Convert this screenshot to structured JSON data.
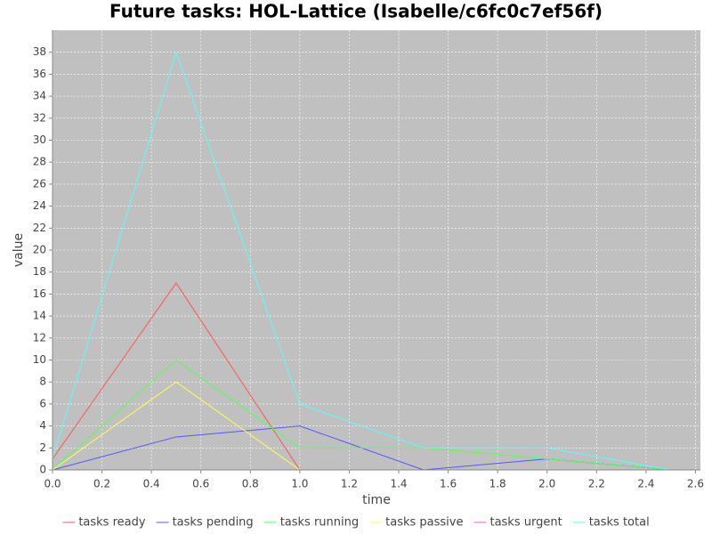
{
  "chart_data": {
    "type": "line",
    "title": "Future tasks: HOL-Lattice (Isabelle/c6fc0c7ef56f)",
    "x_label": "time",
    "y_label": "value",
    "x": [
      0,
      0.5,
      1,
      1.5,
      2,
      2.5
    ],
    "series": [
      {
        "name": "tasks ready",
        "color": "#ff5555",
        "values": [
          1,
          17,
          0,
          0,
          0,
          0
        ]
      },
      {
        "name": "tasks pending",
        "color": "#5555ff",
        "values": [
          0,
          3,
          4,
          0,
          1,
          0
        ]
      },
      {
        "name": "tasks running",
        "color": "#55ff55",
        "values": [
          0,
          10,
          2,
          2,
          1,
          0
        ]
      },
      {
        "name": "tasks passive",
        "color": "#ffff55",
        "values": [
          0,
          8,
          0,
          0,
          0,
          0
        ]
      },
      {
        "name": "tasks urgent",
        "color": "#ff55ff",
        "values": [
          0,
          0,
          0,
          0,
          0,
          0
        ]
      },
      {
        "name": "tasks total",
        "color": "#55ffff",
        "values": [
          1,
          38,
          6,
          2,
          2,
          0
        ]
      }
    ],
    "xlim": [
      0,
      2.62
    ],
    "ylim": [
      0,
      40
    ],
    "xticks": [
      {
        "value": 0,
        "label": "0.0"
      },
      0.2,
      0.4,
      0.6,
      0.8,
      {
        "value": 1,
        "label": "1.0"
      },
      1.2,
      1.4,
      1.6,
      1.8,
      {
        "value": 2,
        "label": "2.0"
      },
      2.2,
      2.4,
      2.6
    ],
    "yticks": [
      0,
      2,
      4,
      6,
      8,
      10,
      12,
      14,
      16,
      18,
      20,
      22,
      24,
      26,
      28,
      30,
      32,
      34,
      36,
      38
    ],
    "grid": true,
    "legend": "bottom"
  }
}
